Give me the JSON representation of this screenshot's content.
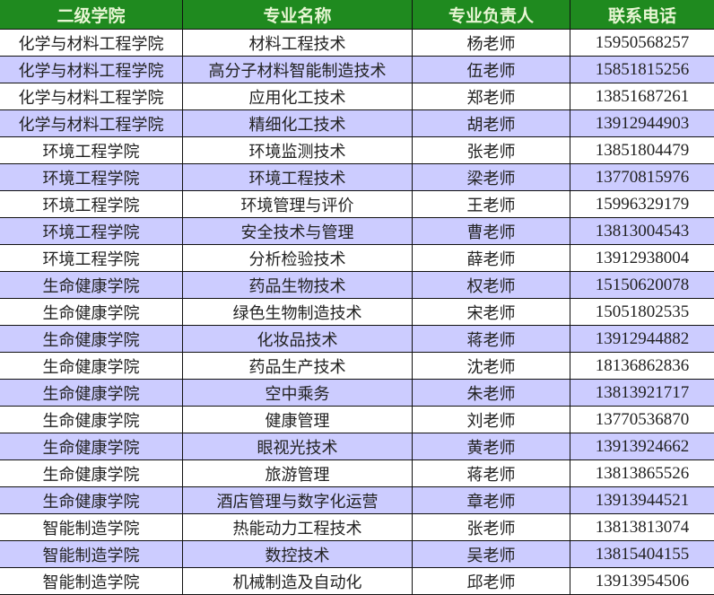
{
  "colors": {
    "header_bg": "#1f8a1f",
    "header_text": "#e8f6d4",
    "alt_row": "#ccccff"
  },
  "headers": [
    "二级学院",
    "专业名称",
    "专业负责人",
    "联系电话"
  ],
  "rows": [
    [
      "化学与材料工程学院",
      "材料工程技术",
      "杨老师",
      "15950568257"
    ],
    [
      "化学与材料工程学院",
      "高分子材料智能制造技术",
      "伍老师",
      "15851815256"
    ],
    [
      "化学与材料工程学院",
      "应用化工技术",
      "郑老师",
      "13851687261"
    ],
    [
      "化学与材料工程学院",
      "精细化工技术",
      "胡老师",
      "13912944903"
    ],
    [
      "环境工程学院",
      "环境监测技术",
      "张老师",
      "13851804479"
    ],
    [
      "环境工程学院",
      "环境工程技术",
      "梁老师",
      "13770815976"
    ],
    [
      "环境工程学院",
      "环境管理与评价",
      "王老师",
      "15996329179"
    ],
    [
      "环境工程学院",
      "安全技术与管理",
      "曹老师",
      "13813004543"
    ],
    [
      "环境工程学院",
      "分析检验技术",
      "薛老师",
      "13912938004"
    ],
    [
      "生命健康学院",
      "药品生物技术",
      "权老师",
      "15150620078"
    ],
    [
      "生命健康学院",
      "绿色生物制造技术",
      "宋老师",
      "15051802535"
    ],
    [
      "生命健康学院",
      "化妆品技术",
      "蒋老师",
      "13912944882"
    ],
    [
      "生命健康学院",
      "药品生产技术",
      "沈老师",
      "18136862836"
    ],
    [
      "生命健康学院",
      "空中乘务",
      "朱老师",
      "13813921717"
    ],
    [
      "生命健康学院",
      "健康管理",
      "刘老师",
      "13770536870"
    ],
    [
      "生命健康学院",
      "眼视光技术",
      "黄老师",
      "13913924662"
    ],
    [
      "生命健康学院",
      "旅游管理",
      "蒋老师",
      "13813865526"
    ],
    [
      "生命健康学院",
      "酒店管理与数字化运营",
      "章老师",
      "13913944521"
    ],
    [
      "智能制造学院",
      "热能动力工程技术",
      "张老师",
      "13813813074"
    ],
    [
      "智能制造学院",
      "数控技术",
      "吴老师",
      "13815404155"
    ],
    [
      "智能制造学院",
      "机械制造及自动化",
      "邱老师",
      "13913954506"
    ]
  ]
}
